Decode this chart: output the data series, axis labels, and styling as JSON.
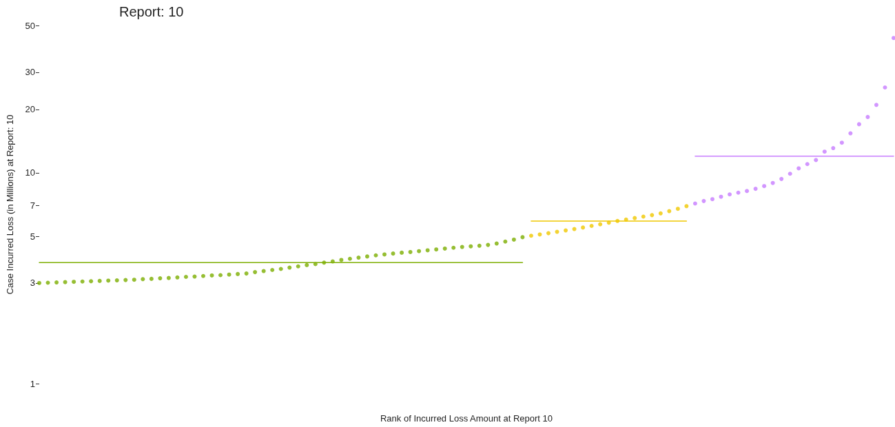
{
  "chart_data": {
    "type": "scatter",
    "title": "Report: 10",
    "xlabel": "Rank of Incurred Loss Amount at Report 10",
    "ylabel": "Case Incurred Loss (in Millions) at Report: 10",
    "log": "y",
    "ylim": [
      1,
      50
    ],
    "yticks": [
      1,
      3,
      5,
      7,
      10,
      20,
      30,
      50
    ],
    "tick_labels": "y",
    "marker": "circle",
    "categories": [
      null,
      null,
      null,
      null,
      null,
      null,
      null,
      null,
      null,
      null,
      null,
      null,
      null,
      null,
      null,
      null,
      null,
      null,
      null,
      null,
      null,
      null,
      null,
      null,
      null,
      null,
      null,
      null,
      null,
      null,
      null,
      null,
      null,
      null,
      null,
      null,
      null,
      null,
      null,
      null,
      null,
      null,
      null,
      null,
      null,
      null,
      null,
      null,
      null,
      null,
      null,
      null,
      null,
      null,
      null,
      null,
      null,
      null,
      null,
      null,
      null,
      null,
      null,
      null,
      null,
      null,
      null,
      null,
      null,
      null,
      null,
      null,
      null,
      null,
      null,
      null,
      null,
      null,
      null,
      null,
      null,
      null,
      null,
      null,
      null,
      null,
      null,
      null,
      null,
      null,
      null,
      null,
      null,
      null,
      null,
      null,
      null,
      null,
      null,
      null
    ],
    "series": [
      {
        "color": "#7cae00",
        "values": [
          3.0,
          3.01,
          3.02,
          3.03,
          3.04,
          3.05,
          3.06,
          3.07,
          3.08,
          3.09,
          3.1,
          3.11,
          3.13,
          3.14,
          3.16,
          3.17,
          3.19,
          3.21,
          3.22,
          3.24,
          3.26,
          3.27,
          3.29,
          3.31,
          3.33,
          3.38,
          3.42,
          3.46,
          3.5,
          3.55,
          3.6,
          3.65,
          3.69,
          3.75,
          3.8,
          3.86,
          3.91,
          3.96,
          4.01,
          4.06,
          4.1,
          4.14,
          4.18,
          4.21,
          4.25,
          4.29,
          4.33,
          4.37,
          4.41,
          4.45,
          4.48,
          4.51,
          4.55,
          4.62,
          4.72,
          4.82,
          4.95,
          null,
          null,
          null,
          null,
          null,
          null,
          null,
          null,
          null,
          null,
          null,
          null,
          null,
          null,
          null,
          null,
          null,
          null,
          null,
          null,
          null,
          null,
          null,
          null,
          null,
          null,
          null,
          null,
          null,
          null,
          null,
          null,
          null,
          null,
          null,
          null,
          null,
          null,
          null,
          null,
          null,
          null,
          null
        ]
      },
      {
        "color": "#f0c800",
        "values": [
          null,
          null,
          null,
          null,
          null,
          null,
          null,
          null,
          null,
          null,
          null,
          null,
          null,
          null,
          null,
          null,
          null,
          null,
          null,
          null,
          null,
          null,
          null,
          null,
          null,
          null,
          null,
          null,
          null,
          null,
          null,
          null,
          null,
          null,
          null,
          null,
          null,
          null,
          null,
          null,
          null,
          null,
          null,
          null,
          null,
          null,
          null,
          null,
          null,
          null,
          null,
          null,
          null,
          null,
          null,
          null,
          null,
          5.03,
          5.1,
          5.17,
          5.25,
          5.33,
          5.41,
          5.5,
          5.6,
          5.7,
          5.8,
          5.91,
          6.0,
          6.1,
          6.2,
          6.3,
          6.42,
          6.58,
          6.75,
          6.95,
          null,
          null,
          null,
          null,
          null,
          null,
          null,
          null,
          null,
          null,
          null,
          null,
          null,
          null,
          null,
          null,
          null,
          null,
          null,
          null,
          null,
          null,
          null,
          null
        ]
      },
      {
        "color": "#c77cff",
        "values": [
          null,
          null,
          null,
          null,
          null,
          null,
          null,
          null,
          null,
          null,
          null,
          null,
          null,
          null,
          null,
          null,
          null,
          null,
          null,
          null,
          null,
          null,
          null,
          null,
          null,
          null,
          null,
          null,
          null,
          null,
          null,
          null,
          null,
          null,
          null,
          null,
          null,
          null,
          null,
          null,
          null,
          null,
          null,
          null,
          null,
          null,
          null,
          null,
          null,
          null,
          null,
          null,
          null,
          null,
          null,
          null,
          null,
          null,
          null,
          null,
          null,
          null,
          null,
          null,
          null,
          null,
          null,
          null,
          null,
          null,
          null,
          null,
          null,
          null,
          null,
          null,
          7.15,
          7.35,
          7.5,
          7.7,
          7.9,
          8.05,
          8.2,
          8.4,
          8.65,
          8.95,
          9.35,
          9.9,
          10.5,
          11.0,
          11.5,
          12.6,
          13.1,
          13.9,
          15.4,
          17.0,
          18.4,
          21.0,
          25.4,
          43.6
        ]
      },
      {
        "type": "line",
        "color": "#7cae00",
        "line_style": "solid",
        "marker": "none",
        "values": [
          3.75,
          3.75,
          3.75,
          3.75,
          3.75,
          3.75,
          3.75,
          3.75,
          3.75,
          3.75,
          3.75,
          3.75,
          3.75,
          3.75,
          3.75,
          3.75,
          3.75,
          3.75,
          3.75,
          3.75,
          3.75,
          3.75,
          3.75,
          3.75,
          3.75,
          3.75,
          3.75,
          3.75,
          3.75,
          3.75,
          3.75,
          3.75,
          3.75,
          3.75,
          3.75,
          3.75,
          3.75,
          3.75,
          3.75,
          3.75,
          3.75,
          3.75,
          3.75,
          3.75,
          3.75,
          3.75,
          3.75,
          3.75,
          3.75,
          3.75,
          3.75,
          3.75,
          3.75,
          3.75,
          3.75,
          3.75,
          3.75,
          null,
          null,
          null,
          null,
          null,
          null,
          null,
          null,
          null,
          null,
          null,
          null,
          null,
          null,
          null,
          null,
          null,
          null,
          null,
          null,
          null,
          null,
          null,
          null,
          null,
          null,
          null,
          null,
          null,
          null,
          null,
          null,
          null,
          null,
          null,
          null,
          null,
          null,
          null,
          null,
          null,
          null,
          null
        ]
      },
      {
        "type": "line",
        "color": "#f0c800",
        "line_style": "solid",
        "marker": "none",
        "values": [
          null,
          null,
          null,
          null,
          null,
          null,
          null,
          null,
          null,
          null,
          null,
          null,
          null,
          null,
          null,
          null,
          null,
          null,
          null,
          null,
          null,
          null,
          null,
          null,
          null,
          null,
          null,
          null,
          null,
          null,
          null,
          null,
          null,
          null,
          null,
          null,
          null,
          null,
          null,
          null,
          null,
          null,
          null,
          null,
          null,
          null,
          null,
          null,
          null,
          null,
          null,
          null,
          null,
          null,
          null,
          null,
          null,
          5.9,
          5.9,
          5.9,
          5.9,
          5.9,
          5.9,
          5.9,
          5.9,
          5.9,
          5.9,
          5.9,
          5.9,
          5.9,
          5.9,
          5.9,
          5.9,
          5.9,
          5.9,
          5.9,
          null,
          null,
          null,
          null,
          null,
          null,
          null,
          null,
          null,
          null,
          null,
          null,
          null,
          null,
          null,
          null,
          null,
          null,
          null,
          null,
          null,
          null,
          null,
          null
        ]
      },
      {
        "type": "line",
        "color": "#c77cff",
        "line_style": "solid",
        "marker": "none",
        "values": [
          null,
          null,
          null,
          null,
          null,
          null,
          null,
          null,
          null,
          null,
          null,
          null,
          null,
          null,
          null,
          null,
          null,
          null,
          null,
          null,
          null,
          null,
          null,
          null,
          null,
          null,
          null,
          null,
          null,
          null,
          null,
          null,
          null,
          null,
          null,
          null,
          null,
          null,
          null,
          null,
          null,
          null,
          null,
          null,
          null,
          null,
          null,
          null,
          null,
          null,
          null,
          null,
          null,
          null,
          null,
          null,
          null,
          null,
          null,
          null,
          null,
          null,
          null,
          null,
          null,
          null,
          null,
          null,
          null,
          null,
          null,
          null,
          null,
          null,
          null,
          null,
          12.0,
          12.0,
          12.0,
          12.0,
          12.0,
          12.0,
          12.0,
          12.0,
          12.0,
          12.0,
          12.0,
          12.0,
          12.0,
          12.0,
          12.0,
          12.0,
          12.0,
          12.0,
          12.0,
          12.0,
          12.0,
          12.0,
          12.0,
          12.0
        ]
      }
    ]
  }
}
